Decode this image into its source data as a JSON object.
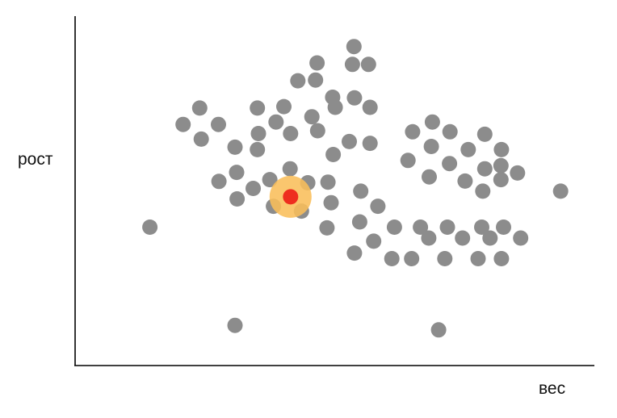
{
  "chart_data": {
    "type": "scatter",
    "title": "",
    "xlabel": "вес",
    "ylabel": "рост",
    "xlim": [
      0,
      100
    ],
    "ylim": [
      0,
      100
    ],
    "grid": false,
    "legend": "none",
    "colors": {
      "point": "#8c8c8c",
      "highlight_halo": "#f9be5a",
      "highlight_point": "#ee2d1f",
      "axis": "#000000"
    },
    "series": [
      {
        "points": [
          [
            14.4,
            39.6
          ],
          [
            30.8,
            11.5
          ],
          [
            70.0,
            10.2
          ],
          [
            93.5,
            49.9
          ],
          [
            20.8,
            69.0
          ],
          [
            24.0,
            73.7
          ],
          [
            24.3,
            64.8
          ],
          [
            27.6,
            69.0
          ],
          [
            30.8,
            62.5
          ],
          [
            35.1,
            73.7
          ],
          [
            35.3,
            66.4
          ],
          [
            38.7,
            69.7
          ],
          [
            40.2,
            74.1
          ],
          [
            41.5,
            66.4
          ],
          [
            42.9,
            81.5
          ],
          [
            46.3,
            81.7
          ],
          [
            46.6,
            86.6
          ],
          [
            49.6,
            76.8
          ],
          [
            45.6,
            71.2
          ],
          [
            50.1,
            73.9
          ],
          [
            46.7,
            67.2
          ],
          [
            49.7,
            60.4
          ],
          [
            52.8,
            64.1
          ],
          [
            53.8,
            76.6
          ],
          [
            53.4,
            86.2
          ],
          [
            53.7,
            91.3
          ],
          [
            56.5,
            86.2
          ],
          [
            56.8,
            73.9
          ],
          [
            56.8,
            63.6
          ],
          [
            35.1,
            61.8
          ],
          [
            31.1,
            55.3
          ],
          [
            27.7,
            52.7
          ],
          [
            31.2,
            47.7
          ],
          [
            34.3,
            50.7
          ],
          [
            37.5,
            53.2
          ],
          [
            38.2,
            45.6
          ],
          [
            41.4,
            56.3
          ],
          [
            44.8,
            52.3
          ],
          [
            49.3,
            46.6
          ],
          [
            48.7,
            52.5
          ],
          [
            43.6,
            44.2
          ],
          [
            55.0,
            49.9
          ],
          [
            58.3,
            45.6
          ],
          [
            48.5,
            39.4
          ],
          [
            53.8,
            32.2
          ],
          [
            54.8,
            41.1
          ],
          [
            57.5,
            35.6
          ],
          [
            61.5,
            39.6
          ],
          [
            61.0,
            30.6
          ],
          [
            64.8,
            30.6
          ],
          [
            66.5,
            39.6
          ],
          [
            68.1,
            36.5
          ],
          [
            71.7,
            39.6
          ],
          [
            71.2,
            30.6
          ],
          [
            74.6,
            36.5
          ],
          [
            77.6,
            30.6
          ],
          [
            78.3,
            39.6
          ],
          [
            79.9,
            36.5
          ],
          [
            82.1,
            30.6
          ],
          [
            82.5,
            39.6
          ],
          [
            85.8,
            36.5
          ],
          [
            65.0,
            66.9
          ],
          [
            68.8,
            69.7
          ],
          [
            72.2,
            66.9
          ],
          [
            68.6,
            62.7
          ],
          [
            64.1,
            58.7
          ],
          [
            72.1,
            57.8
          ],
          [
            75.7,
            61.8
          ],
          [
            78.9,
            66.2
          ],
          [
            82.1,
            61.8
          ],
          [
            78.9,
            56.3
          ],
          [
            75.1,
            52.8
          ],
          [
            82.0,
            57.2
          ],
          [
            85.2,
            55.1
          ],
          [
            78.5,
            49.9
          ],
          [
            82.0,
            53.2
          ],
          [
            68.2,
            54.0
          ]
        ]
      }
    ],
    "highlight": {
      "x": 41.5,
      "y": 48.3
    }
  }
}
